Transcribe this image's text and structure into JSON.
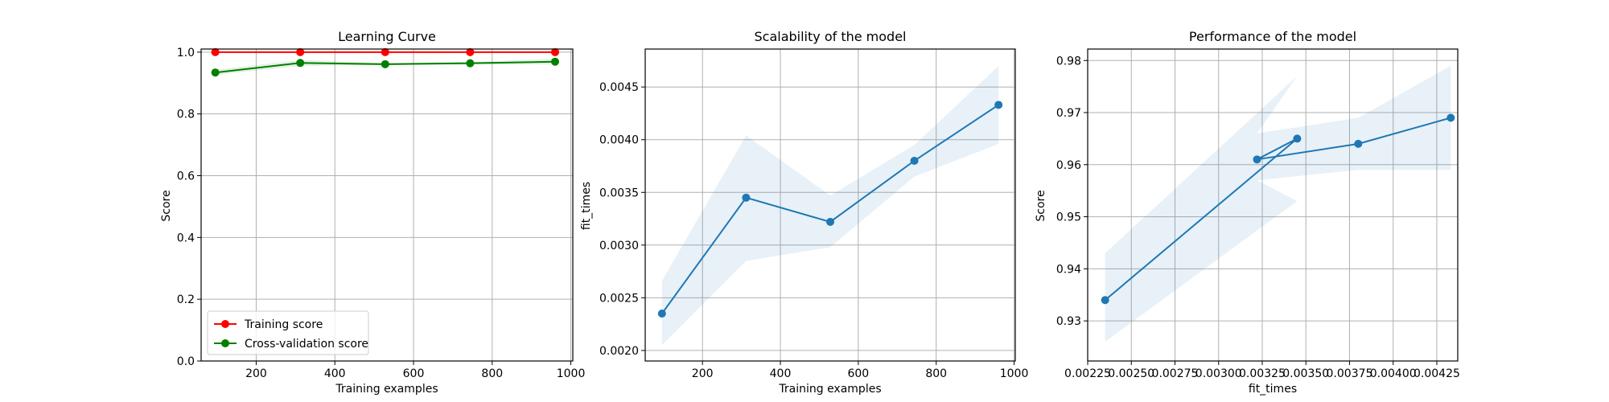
{
  "chart_data": [
    {
      "type": "line",
      "title": "Learning Curve",
      "xlabel": "Training examples",
      "ylabel": "Score",
      "xlim": [
        60,
        1005
      ],
      "ylim": [
        0.0,
        1.01
      ],
      "xticks": [
        200,
        400,
        600,
        800,
        1000
      ],
      "yticks": [
        0.0,
        0.2,
        0.4,
        0.6,
        0.8,
        1.0
      ],
      "ytick_decimals": 1,
      "grid": true,
      "legend": "lower-left",
      "series": [
        {
          "name": "Training score",
          "color": "#ff0000",
          "x": [
            96,
            312,
            528,
            744,
            960
          ],
          "y": [
            1.0,
            1.0,
            1.0,
            1.0,
            1.0
          ],
          "band_lower": [
            1.0,
            1.0,
            1.0,
            1.0,
            1.0
          ],
          "band_upper": [
            1.0,
            1.0,
            1.0,
            1.0,
            1.0
          ]
        },
        {
          "name": "Cross-validation score",
          "color": "#008000",
          "x": [
            96,
            312,
            528,
            744,
            960
          ],
          "y": [
            0.934,
            0.965,
            0.961,
            0.964,
            0.969
          ],
          "band_lower": [
            0.926,
            0.955,
            0.958,
            0.96,
            0.96
          ],
          "band_upper": [
            0.943,
            0.975,
            0.965,
            0.968,
            0.979
          ]
        }
      ]
    },
    {
      "type": "line",
      "title": "Scalability of the model",
      "xlabel": "Training examples",
      "ylabel": "fit_times",
      "xlim": [
        53,
        1003
      ],
      "ylim": [
        0.0019,
        0.00486
      ],
      "xticks": [
        200,
        400,
        600,
        800,
        1000
      ],
      "yticks": [
        0.002,
        0.0025,
        0.003,
        0.0035,
        0.004,
        0.0045
      ],
      "ytick_decimals": 4,
      "grid": true,
      "series": [
        {
          "color": "#1f77b4",
          "x": [
            96,
            312,
            528,
            744,
            960
          ],
          "y": [
            0.00235,
            0.00345,
            0.00322,
            0.0038,
            0.00433
          ],
          "band_lower": [
            0.00205,
            0.00285,
            0.00298,
            0.00365,
            0.00396
          ],
          "band_upper": [
            0.00266,
            0.00404,
            0.00347,
            0.00395,
            0.0047
          ]
        }
      ]
    },
    {
      "type": "line",
      "title": "Performance of the model",
      "xlabel": "fit_times",
      "ylabel": "Score",
      "xlim": [
        0.00225,
        0.00437
      ],
      "ylim": [
        0.9223,
        0.9822
      ],
      "xticks": [
        0.00225,
        0.0025,
        0.00275,
        0.003,
        0.00325,
        0.0035,
        0.00375,
        0.004,
        0.00425
      ],
      "yticks": [
        0.93,
        0.94,
        0.95,
        0.96,
        0.97,
        0.98
      ],
      "xtick_decimals": 5,
      "ytick_decimals": 2,
      "grid": true,
      "series": [
        {
          "color": "#1f77b4",
          "x": [
            0.00235,
            0.00345,
            0.00322,
            0.0038,
            0.00433
          ],
          "y": [
            0.934,
            0.965,
            0.961,
            0.964,
            0.969
          ],
          "band_lower": [
            0.926,
            0.953,
            0.957,
            0.959,
            0.959
          ],
          "band_upper": [
            0.943,
            0.977,
            0.966,
            0.969,
            0.979
          ]
        }
      ]
    }
  ]
}
